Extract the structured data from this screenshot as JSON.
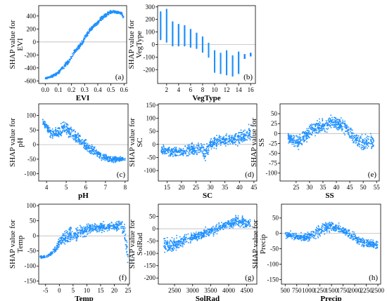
{
  "chart_data": [
    {
      "type": "scatter",
      "panel_label": "(a)",
      "xlabel": "EVI",
      "ylabel_line1": "SHAP value for",
      "ylabel_line2": "EVI",
      "xlim": [
        -0.05,
        0.62
      ],
      "ylim": [
        -640,
        560
      ],
      "xticks": [
        0.0,
        0.1,
        0.2,
        0.3,
        0.4,
        0.5,
        0.6
      ],
      "xtick_labels": [
        "0.0",
        "0.1",
        "0.2",
        "0.3",
        "0.4",
        "0.5",
        "0.6"
      ],
      "yticks": [
        -600,
        -400,
        -200,
        0,
        200,
        400
      ],
      "ytick_labels": [
        "-600",
        "-400",
        "-200",
        "0",
        "200",
        "400"
      ],
      "x": [
        0.0,
        0.02,
        0.05,
        0.08,
        0.1,
        0.12,
        0.15,
        0.18,
        0.2,
        0.22,
        0.25,
        0.28,
        0.3,
        0.32,
        0.35,
        0.38,
        0.4,
        0.42,
        0.45,
        0.48,
        0.5,
        0.52,
        0.55,
        0.58,
        0.6
      ],
      "y": [
        -560,
        -550,
        -530,
        -500,
        -470,
        -430,
        -360,
        -300,
        -230,
        -160,
        -90,
        -20,
        60,
        130,
        200,
        260,
        300,
        350,
        400,
        440,
        460,
        470,
        460,
        440,
        360
      ],
      "spread": [
        20,
        20,
        25,
        30,
        35,
        40,
        40,
        40,
        45,
        45,
        45,
        45,
        45,
        45,
        45,
        40,
        40,
        40,
        40,
        35,
        35,
        30,
        30,
        30,
        40
      ]
    },
    {
      "type": "scatter",
      "panel_label": "(b)",
      "xlabel": "VegType",
      "ylabel_line1": "SHAP value for",
      "ylabel_line2": "VegType",
      "xlim": [
        0.5,
        16.8
      ],
      "ylim": [
        -310,
        310
      ],
      "xticks": [
        2,
        4,
        6,
        8,
        10,
        12,
        14,
        16
      ],
      "xtick_labels": [
        "2",
        "4",
        "6",
        "8",
        "10",
        "12",
        "14",
        "16"
      ],
      "yticks": [
        -200,
        -100,
        0,
        100,
        200,
        300
      ],
      "ytick_labels": [
        "-200",
        "-100",
        "0",
        "100",
        "200",
        "300"
      ],
      "categories": [
        1,
        2,
        3,
        4,
        5,
        6,
        7,
        8,
        9,
        10,
        11,
        12,
        13,
        14,
        15,
        16
      ],
      "y_high": [
        260,
        280,
        180,
        160,
        150,
        120,
        90,
        60,
        10,
        -50,
        -70,
        -50,
        -90,
        -60,
        -80,
        -70
      ],
      "y_low": [
        40,
        20,
        -10,
        -10,
        -10,
        -20,
        -30,
        -60,
        -100,
        -220,
        -230,
        -240,
        -250,
        -230,
        -110,
        -90
      ]
    },
    {
      "type": "scatter",
      "panel_label": "(c)",
      "xlabel": "pH",
      "ylabel_line1": "SHAP value for",
      "ylabel_line2": "pH",
      "xlim": [
        3.6,
        8.15
      ],
      "ylim": [
        -125,
        140
      ],
      "xticks": [
        4,
        5,
        6,
        7,
        8
      ],
      "xtick_labels": [
        "4",
        "5",
        "6",
        "7",
        "8"
      ],
      "yticks": [
        -100,
        -50,
        0,
        50,
        100
      ],
      "ytick_labels": [
        "-100",
        "-50",
        "0",
        "50",
        "100"
      ],
      "x": [
        3.8,
        4.2,
        4.5,
        4.8,
        5.0,
        5.2,
        5.5,
        5.8,
        6.0,
        6.2,
        6.5,
        6.8,
        7.0,
        7.3,
        7.6,
        8.0
      ],
      "y": [
        80,
        40,
        40,
        50,
        60,
        40,
        25,
        10,
        -5,
        -15,
        -25,
        -40,
        -45,
        -50,
        -50,
        -50
      ],
      "spread": [
        15,
        25,
        25,
        35,
        35,
        35,
        30,
        25,
        25,
        25,
        20,
        20,
        20,
        15,
        15,
        10
      ]
    },
    {
      "type": "scatter",
      "panel_label": "(d)",
      "xlabel": "SC",
      "ylabel_line1": "SHAP value for",
      "ylabel_line2": "SC",
      "xlim": [
        12,
        46
      ],
      "ylim": [
        -140,
        155
      ],
      "xticks": [
        15,
        20,
        25,
        30,
        35,
        40,
        45
      ],
      "xtick_labels": [
        "15",
        "20",
        "25",
        "30",
        "35",
        "40",
        "45"
      ],
      "yticks": [
        -100,
        -50,
        0,
        50,
        100,
        150
      ],
      "ytick_labels": [
        "-100",
        "-50",
        "0",
        "50",
        "100",
        "150"
      ],
      "x": [
        13,
        15,
        18,
        20,
        23,
        25,
        27,
        28,
        30,
        32,
        35,
        37,
        40,
        42,
        44
      ],
      "y": [
        -20,
        -25,
        -30,
        -30,
        -20,
        -20,
        -15,
        -40,
        5,
        10,
        15,
        20,
        25,
        35,
        45
      ],
      "spread": [
        25,
        25,
        25,
        25,
        30,
        30,
        35,
        45,
        30,
        30,
        30,
        30,
        35,
        40,
        45
      ]
    },
    {
      "type": "scatter",
      "panel_label": "(e)",
      "xlabel": "SS",
      "ylabel_line1": "SHAP value for",
      "ylabel_line2": "SS",
      "xlim": [
        19,
        56
      ],
      "ylim": [
        -120,
        75
      ],
      "xticks": [
        25,
        30,
        35,
        40,
        45,
        50,
        55
      ],
      "xtick_labels": [
        "25",
        "30",
        "35",
        "40",
        "45",
        "50",
        "55"
      ],
      "yticks": [
        -100,
        -75,
        -50,
        -25,
        0,
        25,
        50
      ],
      "ytick_labels": [
        "-100",
        "-75",
        "-50",
        "-25",
        "0",
        "25",
        "50"
      ],
      "x": [
        22,
        25,
        27,
        30,
        33,
        35,
        37,
        40,
        43,
        45,
        48,
        50,
        52,
        54
      ],
      "y": [
        -10,
        -25,
        -15,
        5,
        15,
        20,
        25,
        25,
        20,
        0,
        -15,
        -25,
        -20,
        -20
      ],
      "spread": [
        20,
        25,
        25,
        25,
        25,
        25,
        25,
        25,
        25,
        25,
        25,
        25,
        25,
        25
      ]
    },
    {
      "type": "scatter",
      "panel_label": "(f)",
      "xlabel": "Temp",
      "ylabel_line1": "SHAP value for",
      "ylabel_line2": "Temp",
      "xlim": [
        -7.5,
        25.5
      ],
      "ylim": [
        -160,
        105
      ],
      "xticks": [
        -5,
        0,
        5,
        10,
        15,
        20,
        25
      ],
      "xtick_labels": [
        "-5",
        "0",
        "5",
        "10",
        "15",
        "20",
        "25"
      ],
      "yticks": [
        -150,
        -100,
        -50,
        0,
        50,
        100
      ],
      "ytick_labels": [
        "-150",
        "-100",
        "-50",
        "0",
        "50",
        "100"
      ],
      "x": [
        -7,
        -5,
        -3,
        -1,
        0,
        2,
        4,
        5,
        8,
        10,
        12,
        15,
        18,
        20,
        22,
        23,
        24,
        25
      ],
      "y": [
        -70,
        -70,
        -60,
        -40,
        -20,
        -5,
        5,
        0,
        15,
        20,
        25,
        30,
        30,
        30,
        35,
        30,
        0,
        -80
      ],
      "spread": [
        5,
        5,
        10,
        20,
        25,
        30,
        40,
        40,
        25,
        25,
        20,
        20,
        20,
        20,
        25,
        30,
        40,
        40
      ]
    },
    {
      "type": "scatter",
      "panel_label": "(g)",
      "xlabel": "SolRad",
      "ylabel_line1": "SHAP value for",
      "ylabel_line2": "SolRad",
      "xlim": [
        2050,
        4780
      ],
      "ylim": [
        -225,
        100
      ],
      "xticks": [
        2500,
        3000,
        3500,
        4000,
        4500
      ],
      "xtick_labels": [
        "2500",
        "3000",
        "3500",
        "4000",
        "4500"
      ],
      "yticks": [
        -200,
        -150,
        -100,
        -50,
        0,
        50
      ],
      "ytick_labels": [
        "-200",
        "-150",
        "-100",
        "-50",
        "0",
        "50"
      ],
      "x": [
        2200,
        2400,
        2600,
        2800,
        3000,
        3200,
        3400,
        3600,
        3800,
        4000,
        4200,
        4400,
        4600
      ],
      "y": [
        -60,
        -70,
        -60,
        -45,
        -35,
        -25,
        -15,
        -5,
        10,
        20,
        30,
        25,
        20
      ],
      "spread": [
        50,
        40,
        35,
        30,
        30,
        25,
        25,
        25,
        25,
        30,
        30,
        30,
        30
      ]
    },
    {
      "type": "scatter",
      "panel_label": "(h)",
      "xlabel": "Precip",
      "ylabel_line1": "SHAP value for",
      "ylabel_line2": "Precip",
      "xlim": [
        420,
        2560
      ],
      "ylim": [
        -165,
        95
      ],
      "xticks": [
        500,
        750,
        1000,
        1250,
        1500,
        1750,
        2000,
        2250,
        2500
      ],
      "xtick_labels": [
        "500",
        "750",
        "1000",
        "1250",
        "1500",
        "1750",
        "2000",
        "2250",
        "2500"
      ],
      "yticks": [
        -150,
        -100,
        -50,
        0,
        50
      ],
      "ytick_labels": [
        "-150",
        "-100",
        "-50",
        "0",
        "50"
      ],
      "x": [
        500,
        600,
        700,
        800,
        900,
        1000,
        1100,
        1200,
        1300,
        1400,
        1500,
        1600,
        1700,
        1800,
        1900,
        2000,
        2100,
        2200,
        2300,
        2400,
        2500
      ],
      "y": [
        -5,
        -5,
        -10,
        -10,
        -15,
        -10,
        -5,
        5,
        15,
        20,
        25,
        20,
        15,
        5,
        -5,
        -15,
        -25,
        -30,
        -30,
        -35,
        -35
      ],
      "spread": [
        15,
        15,
        15,
        15,
        20,
        20,
        20,
        25,
        25,
        25,
        25,
        20,
        20,
        20,
        20,
        20,
        20,
        20,
        20,
        20,
        20
      ]
    }
  ],
  "style": {
    "point_color": "#1e90ff",
    "zero_line_color": "#bbbbbb"
  }
}
